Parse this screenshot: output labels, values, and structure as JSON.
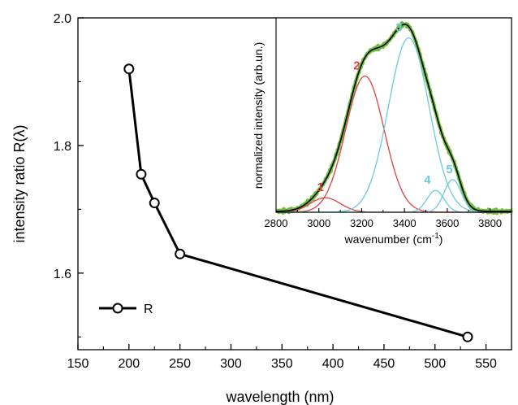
{
  "chart_data": [
    {
      "type": "line",
      "xlabel": "wavelength (nm)",
      "ylabel": "intensity ratio R(λ)",
      "xlim": [
        150,
        575
      ],
      "ylim": [
        1.48,
        2.0
      ],
      "xticks": [
        "150",
        "200",
        "250",
        "300",
        "350",
        "400",
        "450",
        "500",
        "550"
      ],
      "yticks": [
        "1.6",
        "1.8",
        "2.0"
      ],
      "legend": {
        "label": "R",
        "position": "bottom-left"
      },
      "series": [
        {
          "name": "R",
          "marker": "open-circle",
          "color": "#000000",
          "x": [
            200,
            212,
            225,
            250,
            532
          ],
          "y": [
            1.92,
            1.755,
            1.71,
            1.63,
            1.5
          ]
        }
      ]
    },
    {
      "type": "line",
      "xlabel": "wavenumber (cm⁻¹)",
      "xlabel_main": "wavenumber (cm",
      "xlabel_sup": "-1",
      "xlabel_end": ")",
      "ylabel": "normalized intensity (arb.un.)",
      "xlim": [
        2800,
        3900
      ],
      "ylim": [
        0,
        1.07
      ],
      "xticks": [
        "2800",
        "3000",
        "3200",
        "3400",
        "3600",
        "3800"
      ],
      "colors": {
        "measured": "#6fbf3a",
        "fit": "#000000",
        "red": "#e0403f",
        "cyan": "#6ccbd9"
      },
      "series": [
        {
          "name": "1",
          "component": "gaussian",
          "center": 3030,
          "width": 70,
          "amplitude": 0.08,
          "color": "#e0403f"
        },
        {
          "name": "2",
          "component": "gaussian",
          "center": 3215,
          "width": 90,
          "amplitude": 0.75,
          "color": "#e0403f"
        },
        {
          "name": "3",
          "component": "gaussian",
          "center": 3420,
          "width": 95,
          "amplitude": 0.96,
          "color": "#6ccbd9"
        },
        {
          "name": "4",
          "component": "gaussian",
          "center": 3545,
          "width": 40,
          "amplitude": 0.12,
          "color": "#6ccbd9"
        },
        {
          "name": "5",
          "component": "gaussian",
          "center": 3625,
          "width": 40,
          "amplitude": 0.18,
          "color": "#6ccbd9"
        }
      ]
    }
  ]
}
